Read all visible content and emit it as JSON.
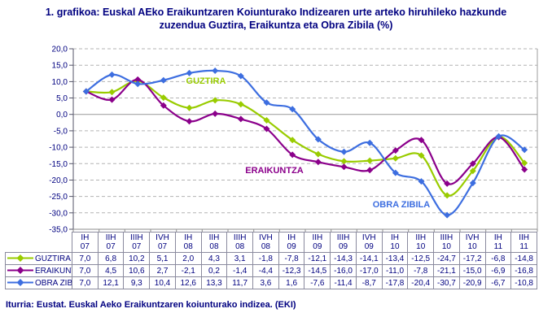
{
  "title": "1. grafikoa: Euskal AEko Eraikuntzaren Koiunturako Indizearen urte arteko hiruhileko hazkunde zuzendua Guztira, Eraikuntza eta Obra Zibila (%)",
  "source": "Iturria: Eustat. Euskal Aeko Eraikuntzaren koiunturako indizea. (EKI)",
  "colors": {
    "text_navy": "#000080",
    "guztira_green": "#99CC00",
    "eraikuntza_purple": "#8B008B",
    "obra_zibila_blue": "#3D6EE0",
    "gridline_grey": "#B3B3B3",
    "zero_line_grey": "#999999",
    "table_border_grey": "#8a8a9e"
  },
  "chart_data": {
    "type": "line",
    "title": "1. grafikoa: Euskal AEko Eraikuntzaren Koiunturako Indizearen urte arteko hiruhileko hazkunde zuzendua Guztira, Eraikuntza eta Obra Zibila (%)",
    "ylabel": "",
    "xlabel": "",
    "ylim": [
      -35,
      20
    ],
    "ytick_step": 5,
    "decimal_separator": "comma",
    "grid": "horizontal-dashed",
    "legend_position": "table-left",
    "categories": [
      {
        "quarter": "IH",
        "year": "07"
      },
      {
        "quarter": "IIH",
        "year": "07"
      },
      {
        "quarter": "IIIH",
        "year": "07"
      },
      {
        "quarter": "IVH",
        "year": "07"
      },
      {
        "quarter": "IH",
        "year": "08"
      },
      {
        "quarter": "IIH",
        "year": "08"
      },
      {
        "quarter": "IIIH",
        "year": "08"
      },
      {
        "quarter": "IVH",
        "year": "08"
      },
      {
        "quarter": "IH",
        "year": "09"
      },
      {
        "quarter": "IIH",
        "year": "09"
      },
      {
        "quarter": "IIIH",
        "year": "09"
      },
      {
        "quarter": "IVH",
        "year": "09"
      },
      {
        "quarter": "IH",
        "year": "10"
      },
      {
        "quarter": "IIH",
        "year": "10"
      },
      {
        "quarter": "IIIH",
        "year": "10"
      },
      {
        "quarter": "IVH",
        "year": "10"
      },
      {
        "quarter": "IH",
        "year": "11"
      },
      {
        "quarter": "IIH",
        "year": "11"
      }
    ],
    "series": [
      {
        "name": "GUZTIRA",
        "color": "#99CC00",
        "values": [
          7.0,
          6.8,
          10.2,
          5.1,
          2.0,
          4.3,
          3.1,
          -1.8,
          -7.8,
          -12.1,
          -14.3,
          -14.1,
          -13.4,
          -12.5,
          -24.7,
          -17.2,
          -6.8,
          -14.8
        ]
      },
      {
        "name": "ERAIKUNTZA",
        "color": "#8B008B",
        "values": [
          7.0,
          4.5,
          10.6,
          2.7,
          -2.1,
          0.2,
          -1.4,
          -4.4,
          -12.3,
          -14.5,
          -16.0,
          -17.0,
          -11.0,
          -7.8,
          -21.1,
          -15.0,
          -6.9,
          -16.8
        ]
      },
      {
        "name": "OBRA ZIBILA",
        "color": "#3D6EE0",
        "values": [
          7.0,
          12.1,
          9.3,
          10.4,
          12.6,
          13.3,
          11.7,
          3.6,
          1.6,
          -7.6,
          -11.4,
          -8.7,
          -17.8,
          -20.4,
          -30.7,
          -20.9,
          -6.7,
          -10.8
        ]
      }
    ],
    "annotations": [
      {
        "text": "GUZTIRA",
        "color": "#99CC00",
        "x": 253,
        "y": 55
      },
      {
        "text": "ERAIKUNTZA",
        "color": "#8B008B",
        "x": 337,
        "y": 165
      },
      {
        "text": "OBRA ZIBILA",
        "color": "#3D6EE0",
        "x": 493,
        "y": 207
      }
    ]
  }
}
